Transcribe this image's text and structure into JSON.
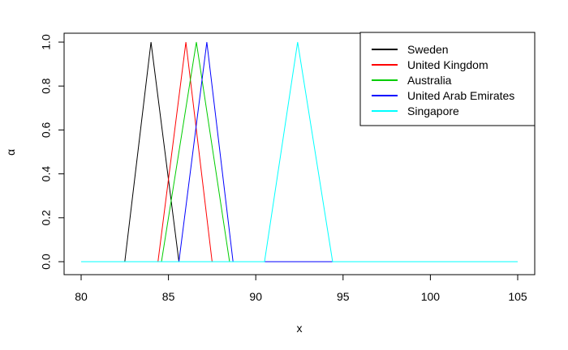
{
  "chart_data": {
    "type": "line",
    "title": "",
    "xlabel": "x",
    "ylabel": "α",
    "xlim": [
      80,
      105
    ],
    "ylim": [
      0,
      1
    ],
    "xticks": [
      "80",
      "85",
      "90",
      "95",
      "100",
      "105"
    ],
    "yticks": [
      "0.0",
      "0.2",
      "0.4",
      "0.6",
      "0.8",
      "1.0"
    ],
    "legend_position": "top-right",
    "grid": false,
    "series": [
      {
        "name": "Sweden",
        "color": "#000000",
        "x": [
          80,
          82.5,
          84,
          85.6,
          105
        ],
        "y": [
          0,
          0,
          1,
          0,
          0
        ]
      },
      {
        "name": "United Kingdom",
        "color": "#ff0000",
        "x": [
          80,
          84.4,
          86,
          87.5,
          105
        ],
        "y": [
          0,
          0,
          1,
          0,
          0
        ]
      },
      {
        "name": "Australia",
        "color": "#00cd00",
        "x": [
          80,
          84.6,
          86.6,
          88.5,
          105
        ],
        "y": [
          0,
          0,
          1,
          0,
          0
        ]
      },
      {
        "name": "United Arab Emirates",
        "color": "#0000ff",
        "x": [
          80,
          85.6,
          87.2,
          88.7,
          105
        ],
        "y": [
          0,
          0,
          1,
          0,
          0
        ]
      },
      {
        "name": "Singapore",
        "color": "#00ffff",
        "x": [
          80,
          90.5,
          92.4,
          94.4,
          105
        ],
        "y": [
          0,
          0,
          1,
          0,
          0
        ]
      }
    ]
  }
}
